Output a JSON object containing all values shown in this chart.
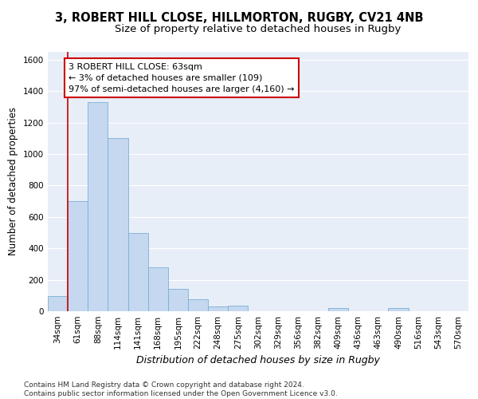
{
  "title1": "3, ROBERT HILL CLOSE, HILLMORTON, RUGBY, CV21 4NB",
  "title2": "Size of property relative to detached houses in Rugby",
  "xlabel": "Distribution of detached houses by size in Rugby",
  "ylabel": "Number of detached properties",
  "bar_labels": [
    "34sqm",
    "61sqm",
    "88sqm",
    "114sqm",
    "141sqm",
    "168sqm",
    "195sqm",
    "222sqm",
    "248sqm",
    "275sqm",
    "302sqm",
    "329sqm",
    "356sqm",
    "382sqm",
    "409sqm",
    "436sqm",
    "463sqm",
    "490sqm",
    "516sqm",
    "543sqm",
    "570sqm"
  ],
  "bar_values": [
    95,
    700,
    1330,
    1100,
    500,
    280,
    140,
    75,
    32,
    35,
    0,
    0,
    0,
    0,
    20,
    0,
    0,
    20,
    0,
    0,
    0
  ],
  "bar_color": "#c5d8f0",
  "bar_edge_color": "#7aafd4",
  "vline_color": "#cc0000",
  "annotation_text": "3 ROBERT HILL CLOSE: 63sqm\n← 3% of detached houses are smaller (109)\n97% of semi-detached houses are larger (4,160) →",
  "annotation_box_color": "#ffffff",
  "annotation_box_edge": "#cc0000",
  "ylim": [
    0,
    1650
  ],
  "yticks": [
    0,
    200,
    400,
    600,
    800,
    1000,
    1200,
    1400,
    1600
  ],
  "background_color": "#e8eef8",
  "footer_text": "Contains HM Land Registry data © Crown copyright and database right 2024.\nContains public sector information licensed under the Open Government Licence v3.0.",
  "grid_color": "#ffffff",
  "title1_fontsize": 10.5,
  "title2_fontsize": 9.5,
  "xlabel_fontsize": 9,
  "ylabel_fontsize": 8.5,
  "annotation_fontsize": 8,
  "footer_fontsize": 6.5,
  "tick_fontsize": 7.5
}
